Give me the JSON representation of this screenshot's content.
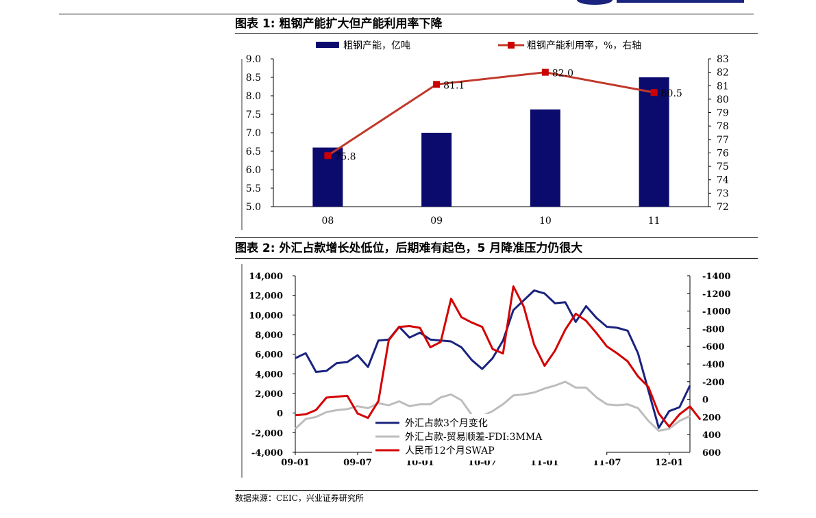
{
  "header": {
    "figure1_title": "图表 1:  粗钢产能扩大但产能利用率下降",
    "figure2_title": "图表 2:  外汇占款增长处低位，后期难有起色，5 月降准压力仍很大",
    "source": "数据来源：CEIC，兴业证券研究所"
  },
  "chart_data": [
    {
      "type": "bar",
      "categories": [
        "08",
        "09",
        "10",
        "11"
      ],
      "series": [
        {
          "name": "粗钢产能，亿吨",
          "kind": "bar",
          "axis": "left",
          "color": "#0b0b6e",
          "values": [
            6.6,
            7.0,
            7.63,
            8.5
          ]
        },
        {
          "name": "粗钢产能利用率，%，右轴",
          "kind": "line",
          "axis": "right",
          "color": "#c0392b",
          "values": [
            75.8,
            81.1,
            82.0,
            80.5
          ],
          "data_labels": [
            "75.8",
            "81.1",
            "82.0",
            "80.5"
          ]
        }
      ],
      "ylim_left": [
        5.0,
        9.0
      ],
      "yticks_left": [
        "5.0",
        "5.5",
        "6.0",
        "6.5",
        "7.0",
        "7.5",
        "8.0",
        "8.5",
        "9.0"
      ],
      "ylim_right": [
        72,
        83
      ],
      "yticks_right": [
        "72",
        "73",
        "74",
        "75",
        "76",
        "77",
        "78",
        "79",
        "80",
        "81",
        "82",
        "83"
      ],
      "legend": "top"
    },
    {
      "type": "line",
      "x_ticks": [
        "09-01",
        "09-07",
        "10-01",
        "10-07",
        "11-01",
        "11-07",
        "12-01"
      ],
      "ylim_left": [
        -4000,
        14000
      ],
      "yticks_left": [
        "-4,000",
        "-2,000",
        "0",
        "2,000",
        "4,000",
        "6,000",
        "8,000",
        "10,000",
        "12,000",
        "14,000"
      ],
      "ylim_right": [
        600,
        -1400
      ],
      "yticks_right": [
        "600",
        "400",
        "200",
        "0",
        "-200",
        "-400",
        "-600",
        "-800",
        "-1000",
        "-1200",
        "-1400"
      ],
      "legend": "bottom-center",
      "series": [
        {
          "name": "外汇占款3个月变化",
          "axis": "left",
          "color": "#1a237e",
          "values": [
            5600,
            6100,
            4200,
            4300,
            5100,
            5200,
            5900,
            4700,
            7400,
            7500,
            8800,
            7700,
            8200,
            7500,
            7400,
            7300,
            6700,
            5400,
            4500,
            5600,
            7400,
            10500,
            11500,
            12500,
            12200,
            11200,
            11300,
            9300,
            10900,
            9700,
            8800,
            8700,
            8400,
            6100,
            2300,
            -1500,
            200,
            600,
            2800
          ]
        },
        {
          "name": "外汇占款-贸易顺差-FDI:3MMA",
          "axis": "left",
          "color": "#bdbdbd",
          "values": [
            -1600,
            -600,
            -400,
            100,
            300,
            400,
            700,
            500,
            1000,
            800,
            1200,
            700,
            900,
            900,
            1600,
            1900,
            1300,
            -200,
            -300,
            200,
            900,
            1800,
            1900,
            2100,
            2500,
            2800,
            3200,
            2600,
            2600,
            1600,
            900,
            800,
            900,
            500,
            -800,
            -1800,
            -1600,
            -800,
            -300
          ]
        },
        {
          "name": "人民币12个月SWAP",
          "axis": "right",
          "color": "#d40000",
          "values": [
            180,
            170,
            120,
            -20,
            -30,
            -40,
            160,
            210,
            20,
            -670,
            -820,
            -830,
            -810,
            -590,
            -650,
            -1140,
            -930,
            -870,
            -820,
            -570,
            -520,
            -1280,
            -1050,
            -620,
            -380,
            -550,
            -790,
            -970,
            -890,
            -750,
            -600,
            -520,
            -430,
            -260,
            -140,
            160,
            310,
            170,
            80,
            230
          ]
        }
      ]
    }
  ]
}
